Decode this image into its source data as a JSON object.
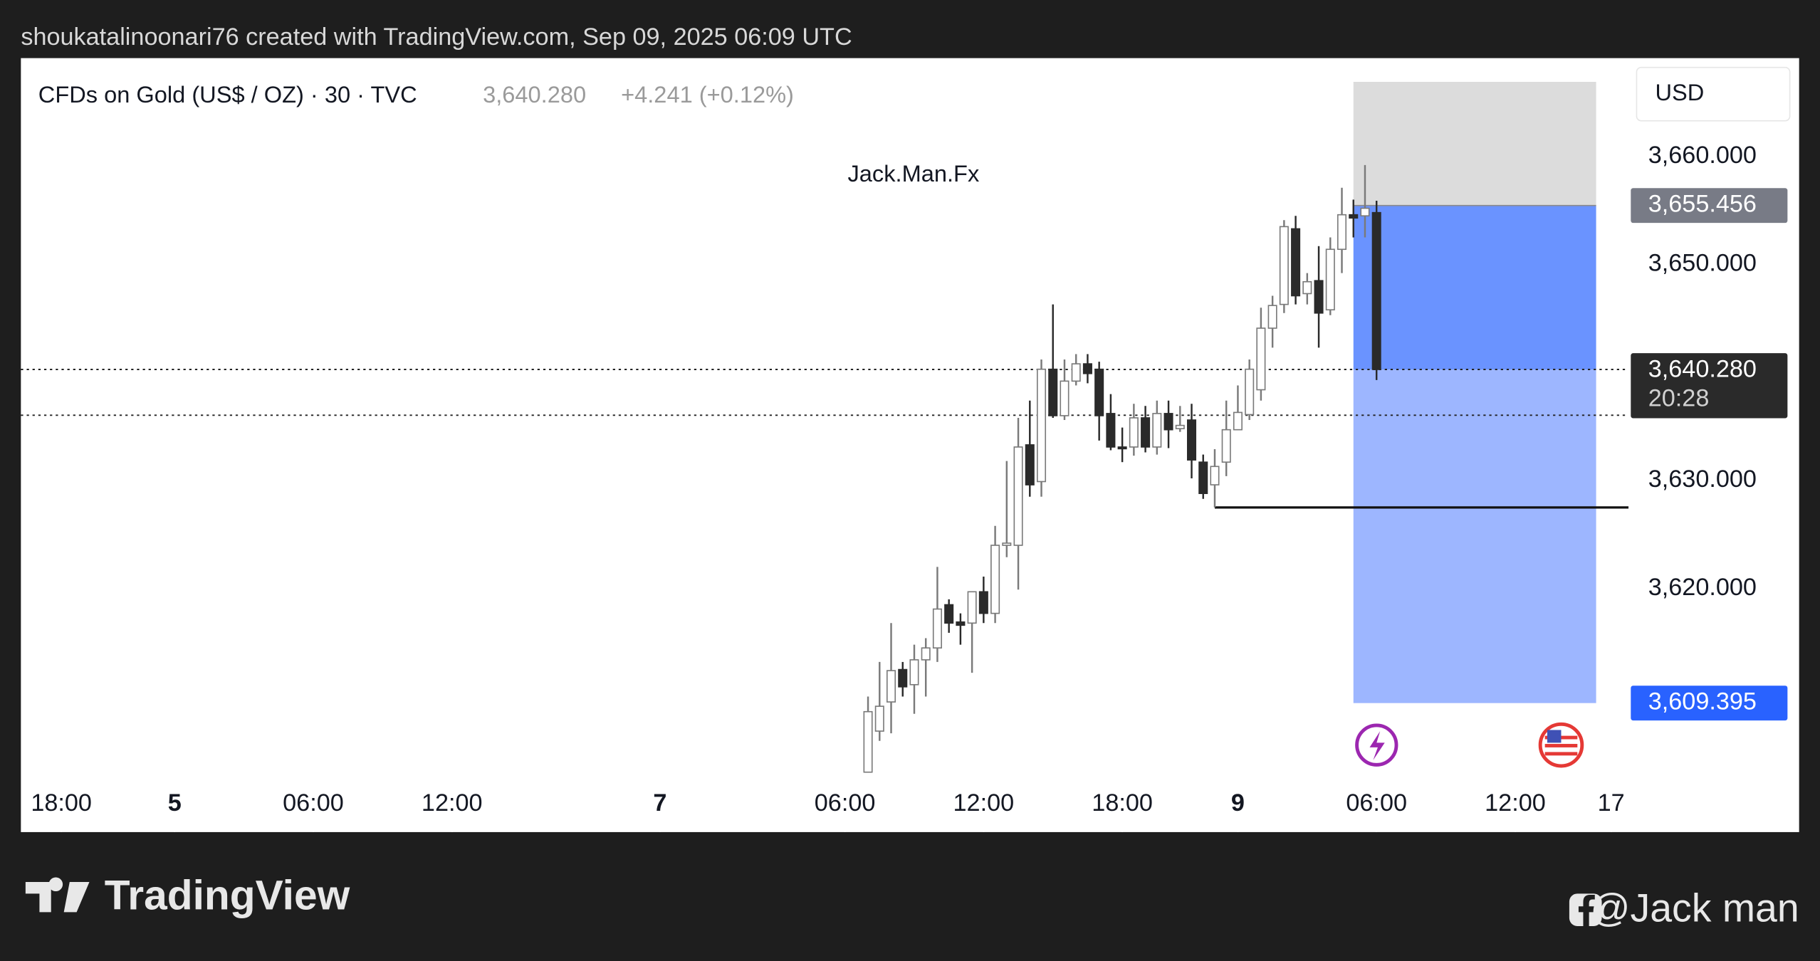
{
  "header": {
    "text": "shoukatalinoonari76 created with TradingView.com, Sep 09, 2025 06:09 UTC"
  },
  "chart_data": {
    "type": "candlestick",
    "symbol": "CFDs on Gold (US$ / OZ) · 30 · TVC",
    "last_price": {
      "value": 3640.28,
      "label": "3,640.280"
    },
    "change": "+4.241 (+0.12%)",
    "annotation": "Jack.Man.Fx",
    "currency": "USD",
    "countdown": "20:28",
    "up_color": "#ffffff",
    "down_color": "#2a2a2a",
    "x": [
      2,
      3,
      4,
      5,
      6,
      7,
      8,
      9,
      10,
      11,
      12,
      13,
      14,
      15,
      16,
      17,
      18,
      19,
      20,
      21,
      22,
      23,
      24,
      25,
      26,
      27,
      28,
      29,
      30,
      31,
      32,
      33,
      34,
      35,
      36,
      37,
      38,
      39,
      40,
      41,
      42,
      43,
      44,
      45,
      46
    ],
    "open": [
      3603.0,
      3606.8,
      3609.5,
      3612.5,
      3611.1,
      3613.4,
      3614.5,
      3618.5,
      3616.9,
      3616.8,
      3619.7,
      3617.7,
      3624.0,
      3624.0,
      3633.3,
      3629.9,
      3640.3,
      3636.0,
      3639.2,
      3640.8,
      3640.3,
      3636.2,
      3633.1,
      3633.1,
      3635.8,
      3633.1,
      3636.2,
      3634.8,
      3635.6,
      3631.7,
      3629.6,
      3631.7,
      3634.7,
      3636.1,
      3638.4,
      3644.1,
      3646.3,
      3653.3,
      3647.3,
      3648.5,
      3645.8,
      3651.4,
      3654.6,
      3654.5,
      3654.8
    ],
    "high": [
      3610.0,
      3613.2,
      3616.8,
      3613.2,
      3614.8,
      3615.4,
      3622.0,
      3619.0,
      3617.7,
      3619.7,
      3621.1,
      3625.8,
      3631.8,
      3635.8,
      3637.4,
      3641.2,
      3646.3,
      3641.2,
      3641.7,
      3641.7,
      3641.0,
      3638.0,
      3634.9,
      3637.1,
      3636.9,
      3637.4,
      3637.4,
      3636.9,
      3637.1,
      3632.4,
      3632.9,
      3637.4,
      3638.8,
      3641.2,
      3646.0,
      3647.1,
      3654.1,
      3654.5,
      3649.2,
      3651.7,
      3652.5,
      3657.1,
      3656.0,
      3659.2,
      3655.9
    ],
    "low": [
      3603.0,
      3605.9,
      3606.6,
      3610.0,
      3608.4,
      3610.0,
      3613.2,
      3615.9,
      3614.8,
      3612.2,
      3616.8,
      3616.8,
      3622.9,
      3619.9,
      3628.5,
      3628.5,
      3635.8,
      3635.6,
      3638.8,
      3639.0,
      3633.7,
      3632.8,
      3631.7,
      3632.3,
      3632.6,
      3632.4,
      3633.0,
      3634.5,
      3630.2,
      3628.3,
      3627.5,
      3630.4,
      3634.7,
      3635.6,
      3637.4,
      3642.3,
      3645.5,
      3646.3,
      3646.3,
      3642.3,
      3645.3,
      3649.2,
      3652.5,
      3652.5,
      3639.3
    ],
    "close": [
      3608.6,
      3609.1,
      3612.4,
      3610.9,
      3613.4,
      3614.5,
      3618.1,
      3616.8,
      3616.6,
      3619.7,
      3617.7,
      3624.0,
      3624.2,
      3633.1,
      3629.6,
      3640.3,
      3636.0,
      3639.2,
      3640.8,
      3639.9,
      3636.0,
      3633.1,
      3633.0,
      3635.8,
      3633.1,
      3636.2,
      3634.7,
      3635.1,
      3631.9,
      3628.8,
      3631.3,
      3634.7,
      3636.3,
      3640.3,
      3644.1,
      3646.2,
      3653.5,
      3647.1,
      3648.4,
      3645.5,
      3651.4,
      3654.6,
      3654.3,
      3655.2,
      3640.28
    ],
    "xlim": [
      -71.3,
      67.8
    ],
    "xticks": [
      {
        "value": -67.8,
        "label": "18:00"
      },
      {
        "value": -58,
        "label": "5"
      },
      {
        "value": -46,
        "label": "06:00"
      },
      {
        "value": -34,
        "label": "12:00"
      },
      {
        "value": -16,
        "label": "7"
      },
      {
        "value": 0,
        "label": "06:00"
      },
      {
        "value": 12,
        "label": "12:00"
      },
      {
        "value": 24,
        "label": "18:00"
      },
      {
        "value": 34,
        "label": "9"
      },
      {
        "value": 46,
        "label": "06:00"
      },
      {
        "value": 58,
        "label": "12:00"
      },
      {
        "value": 66.3,
        "label": "17"
      }
    ],
    "ylim": [
      3602.5,
      3669.1
    ],
    "yticks": [
      {
        "value": 3620,
        "label": "3,620.000"
      },
      {
        "value": 3630,
        "label": "3,630.000"
      },
      {
        "value": 3650,
        "label": "3,650.000"
      },
      {
        "value": 3660,
        "label": "3,660.000"
      }
    ],
    "price_labels": [
      {
        "value": 3655.456,
        "label": "3,655.456",
        "color": "#787b86"
      },
      {
        "value": 3640.28,
        "label": "3,640.280",
        "color": "#2a2a2a"
      },
      {
        "value": 3609.395,
        "label": "3,609.395",
        "color": "#2962ff"
      }
    ],
    "dotted_lines": [
      3640.28,
      3636.04
    ],
    "horizontal_line": {
      "value": 3627.5,
      "x_start": 32
    },
    "position": {
      "stop": 3666.9,
      "entry": 3655.456,
      "target": 3609.395,
      "x_start": 44,
      "x_end": 65
    }
  },
  "footer": {
    "logo": "TradingView",
    "handle": "@Jack man"
  }
}
